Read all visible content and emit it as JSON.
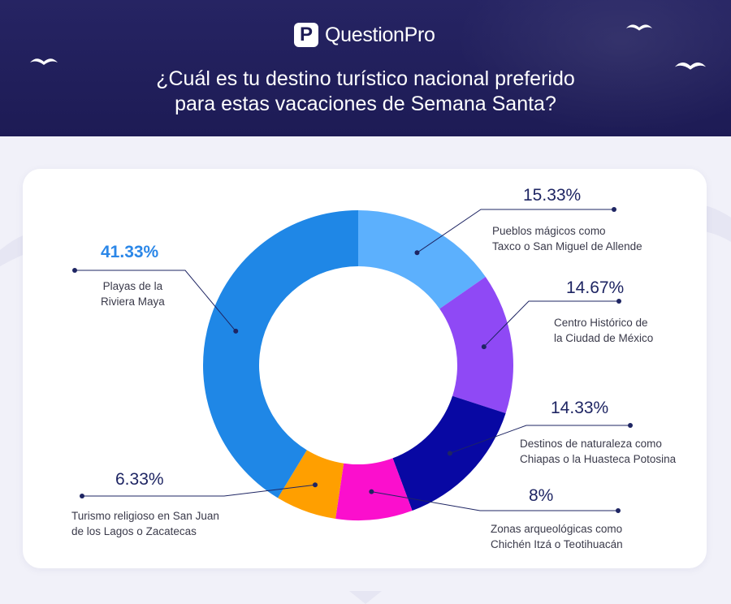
{
  "header": {
    "brand": "QuestionPro",
    "question_line1": "¿Cuál es tu destino turístico nacional preferido",
    "question_line2": "para estas vacaciones de Semana Santa?"
  },
  "chart_data": {
    "type": "pie",
    "donut": true,
    "title": "¿Cuál es tu destino turístico nacional preferido para estas vacaciones de Semana Santa?",
    "slices": [
      {
        "label_line1": "Pueblos mágicos como",
        "label_line2": "Taxco o San Miguel de Allende",
        "value": 15.33,
        "pct_label": "15.33%",
        "color": "#5cb0fd"
      },
      {
        "label_line1": "Centro Histórico de",
        "label_line2": "la Ciudad de México",
        "value": 14.67,
        "pct_label": "14.67%",
        "color": "#8f49f5"
      },
      {
        "label_line1": "Destinos de naturaleza como",
        "label_line2": "Chiapas o la Huasteca Potosina",
        "value": 14.33,
        "pct_label": "14.33%",
        "color": "#0808a3"
      },
      {
        "label_line1": "Zonas arqueológicas como",
        "label_line2": "Chichén Itzá o Teotihuacán",
        "value": 8,
        "pct_label": "8%",
        "color": "#fb0fcd"
      },
      {
        "label_line1": "Turismo religioso en San Juan",
        "label_line2": "de los Lagos o Zacatecas",
        "value": 6.33,
        "pct_label": "6.33%",
        "color": "#ff9f00"
      },
      {
        "label_line1": "Playas de la",
        "label_line2": "Riviera Maya",
        "value": 41.33,
        "pct_label": "41.33%",
        "color": "#1f87e6"
      }
    ]
  }
}
